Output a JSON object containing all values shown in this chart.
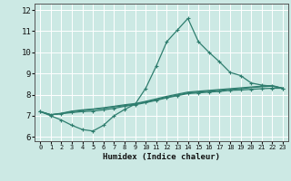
{
  "title": "",
  "xlabel": "Humidex (Indice chaleur)",
  "bg_color": "#cce9e4",
  "grid_color": "#ffffff",
  "line_color": "#2e7d6e",
  "xlim": [
    -0.5,
    23.5
  ],
  "ylim": [
    5.8,
    12.3
  ],
  "xticks": [
    0,
    1,
    2,
    3,
    4,
    5,
    6,
    7,
    8,
    9,
    10,
    11,
    12,
    13,
    14,
    15,
    16,
    17,
    18,
    19,
    20,
    21,
    22,
    23
  ],
  "yticks": [
    6,
    7,
    8,
    9,
    10,
    11,
    12
  ],
  "line1_x": [
    0,
    1,
    2,
    3,
    4,
    5,
    6,
    7,
    8,
    9,
    10,
    11,
    12,
    13,
    14,
    15,
    16,
    17,
    18,
    19,
    20,
    21,
    22,
    23
  ],
  "line1_y": [
    7.2,
    7.0,
    6.8,
    6.55,
    6.35,
    6.28,
    6.55,
    7.0,
    7.3,
    7.55,
    8.3,
    9.35,
    10.5,
    11.05,
    11.6,
    10.5,
    10.0,
    9.55,
    9.05,
    8.9,
    8.55,
    8.45,
    8.4,
    8.3
  ],
  "line2_x": [
    0,
    1,
    2,
    3,
    4,
    5,
    6,
    7,
    8,
    9,
    10,
    11,
    12,
    13,
    14,
    15,
    16,
    17,
    18,
    19,
    20,
    21,
    22,
    23
  ],
  "line2_y": [
    7.2,
    7.05,
    7.1,
    7.15,
    7.2,
    7.22,
    7.28,
    7.35,
    7.45,
    7.52,
    7.62,
    7.73,
    7.85,
    7.95,
    8.05,
    8.08,
    8.12,
    8.15,
    8.2,
    8.22,
    8.25,
    8.28,
    8.3,
    8.3
  ],
  "line3_x": [
    0,
    1,
    2,
    3,
    4,
    5,
    6,
    7,
    8,
    9,
    10,
    11,
    12,
    13,
    14,
    15,
    16,
    17,
    18,
    19,
    20,
    21,
    22,
    23
  ],
  "line3_y": [
    7.2,
    7.05,
    7.1,
    7.2,
    7.25,
    7.3,
    7.35,
    7.42,
    7.48,
    7.55,
    7.65,
    7.75,
    7.88,
    7.98,
    8.08,
    8.12,
    8.16,
    8.2,
    8.25,
    8.28,
    8.33,
    8.37,
    8.4,
    8.3
  ],
  "line4_x": [
    0,
    1,
    2,
    3,
    4,
    5,
    6,
    7,
    8,
    9,
    10,
    11,
    12,
    13,
    14,
    15,
    16,
    17,
    18,
    19,
    20,
    21,
    22,
    23
  ],
  "line4_y": [
    7.2,
    7.05,
    7.12,
    7.22,
    7.28,
    7.32,
    7.38,
    7.45,
    7.52,
    7.58,
    7.68,
    7.8,
    7.92,
    8.02,
    8.12,
    8.16,
    8.2,
    8.24,
    8.28,
    8.32,
    8.36,
    8.4,
    8.43,
    8.3
  ]
}
